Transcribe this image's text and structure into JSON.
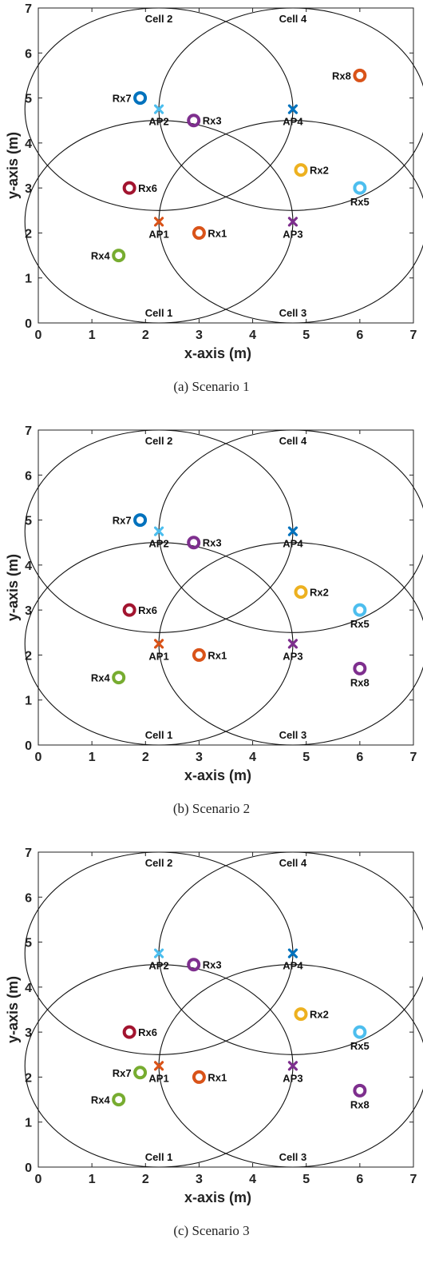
{
  "chart_data": [
    {
      "type": "scatter",
      "caption": "(a) Scenario 1",
      "xlabel": "x-axis (m)",
      "ylabel": "y-axis (m)",
      "xlim": [
        0,
        7
      ],
      "ylim": [
        0,
        7
      ],
      "xticks": [
        0,
        1,
        2,
        3,
        4,
        5,
        6,
        7
      ],
      "yticks": [
        0,
        1,
        2,
        3,
        4,
        5,
        6,
        7
      ],
      "grid": false,
      "cells": [
        {
          "name": "Cell 1",
          "center": [
            2.25,
            2.25
          ],
          "rx": 2.5,
          "ry": 2.25
        },
        {
          "name": "Cell 2",
          "center": [
            2.25,
            4.75
          ],
          "rx": 2.5,
          "ry": 2.25
        },
        {
          "name": "Cell 3",
          "center": [
            4.75,
            2.25
          ],
          "rx": 2.5,
          "ry": 2.25
        },
        {
          "name": "Cell 4",
          "center": [
            4.75,
            4.75
          ],
          "rx": 2.5,
          "ry": 2.25
        }
      ],
      "access_points": [
        {
          "name": "AP1",
          "x": 2.25,
          "y": 2.25,
          "color": "#D95319"
        },
        {
          "name": "AP2",
          "x": 2.25,
          "y": 4.75,
          "color": "#4DBEEE"
        },
        {
          "name": "AP3",
          "x": 4.75,
          "y": 2.25,
          "color": "#7E2F8E"
        },
        {
          "name": "AP4",
          "x": 4.75,
          "y": 4.75,
          "color": "#0072BD"
        }
      ],
      "receivers": [
        {
          "name": "Rx1",
          "x": 3.0,
          "y": 2.0,
          "color": "#D95319",
          "label_pos": "right"
        },
        {
          "name": "Rx2",
          "x": 4.9,
          "y": 3.4,
          "color": "#EDB120",
          "label_pos": "right"
        },
        {
          "name": "Rx3",
          "x": 2.9,
          "y": 4.5,
          "color": "#7E2F8E",
          "label_pos": "right"
        },
        {
          "name": "Rx4",
          "x": 1.5,
          "y": 1.5,
          "color": "#77AC30",
          "label_pos": "left"
        },
        {
          "name": "Rx5",
          "x": 6.0,
          "y": 3.0,
          "color": "#4DBEEE",
          "label_pos": "below"
        },
        {
          "name": "Rx6",
          "x": 1.7,
          "y": 3.0,
          "color": "#A2142F",
          "label_pos": "right"
        },
        {
          "name": "Rx7",
          "x": 1.9,
          "y": 5.0,
          "color": "#0072BD",
          "label_pos": "left"
        },
        {
          "name": "Rx8",
          "x": 6.0,
          "y": 5.5,
          "color": "#D95319",
          "label_pos": "left"
        }
      ]
    },
    {
      "type": "scatter",
      "caption": "(b) Scenario 2",
      "xlabel": "x-axis (m)",
      "ylabel": "y-axis (m)",
      "xlim": [
        0,
        7
      ],
      "ylim": [
        0,
        7
      ],
      "xticks": [
        0,
        1,
        2,
        3,
        4,
        5,
        6,
        7
      ],
      "yticks": [
        0,
        1,
        2,
        3,
        4,
        5,
        6,
        7
      ],
      "grid": false,
      "cells": [
        {
          "name": "Cell 1",
          "center": [
            2.25,
            2.25
          ],
          "rx": 2.5,
          "ry": 2.25
        },
        {
          "name": "Cell 2",
          "center": [
            2.25,
            4.75
          ],
          "rx": 2.5,
          "ry": 2.25
        },
        {
          "name": "Cell 3",
          "center": [
            4.75,
            2.25
          ],
          "rx": 2.5,
          "ry": 2.25
        },
        {
          "name": "Cell 4",
          "center": [
            4.75,
            4.75
          ],
          "rx": 2.5,
          "ry": 2.25
        }
      ],
      "access_points": [
        {
          "name": "AP1",
          "x": 2.25,
          "y": 2.25,
          "color": "#D95319"
        },
        {
          "name": "AP2",
          "x": 2.25,
          "y": 4.75,
          "color": "#4DBEEE"
        },
        {
          "name": "AP3",
          "x": 4.75,
          "y": 2.25,
          "color": "#7E2F8E"
        },
        {
          "name": "AP4",
          "x": 4.75,
          "y": 4.75,
          "color": "#0072BD"
        }
      ],
      "receivers": [
        {
          "name": "Rx1",
          "x": 3.0,
          "y": 2.0,
          "color": "#D95319",
          "label_pos": "right"
        },
        {
          "name": "Rx2",
          "x": 4.9,
          "y": 3.4,
          "color": "#EDB120",
          "label_pos": "right"
        },
        {
          "name": "Rx3",
          "x": 2.9,
          "y": 4.5,
          "color": "#7E2F8E",
          "label_pos": "right"
        },
        {
          "name": "Rx4",
          "x": 1.5,
          "y": 1.5,
          "color": "#77AC30",
          "label_pos": "left"
        },
        {
          "name": "Rx5",
          "x": 6.0,
          "y": 3.0,
          "color": "#4DBEEE",
          "label_pos": "below"
        },
        {
          "name": "Rx6",
          "x": 1.7,
          "y": 3.0,
          "color": "#A2142F",
          "label_pos": "right"
        },
        {
          "name": "Rx7",
          "x": 1.9,
          "y": 5.0,
          "color": "#0072BD",
          "label_pos": "left"
        },
        {
          "name": "Rx8",
          "x": 6.0,
          "y": 1.7,
          "color": "#7E2F8E",
          "label_pos": "below"
        }
      ]
    },
    {
      "type": "scatter",
      "caption": "(c) Scenario 3",
      "xlabel": "x-axis (m)",
      "ylabel": "y-axis (m)",
      "xlim": [
        0,
        7
      ],
      "ylim": [
        0,
        7
      ],
      "xticks": [
        0,
        1,
        2,
        3,
        4,
        5,
        6,
        7
      ],
      "yticks": [
        0,
        1,
        2,
        3,
        4,
        5,
        6,
        7
      ],
      "grid": false,
      "cells": [
        {
          "name": "Cell 1",
          "center": [
            2.25,
            2.25
          ],
          "rx": 2.5,
          "ry": 2.25
        },
        {
          "name": "Cell 2",
          "center": [
            2.25,
            4.75
          ],
          "rx": 2.5,
          "ry": 2.25
        },
        {
          "name": "Cell 3",
          "center": [
            4.75,
            2.25
          ],
          "rx": 2.5,
          "ry": 2.25
        },
        {
          "name": "Cell 4",
          "center": [
            4.75,
            4.75
          ],
          "rx": 2.5,
          "ry": 2.25
        }
      ],
      "access_points": [
        {
          "name": "AP1",
          "x": 2.25,
          "y": 2.25,
          "color": "#D95319"
        },
        {
          "name": "AP2",
          "x": 2.25,
          "y": 4.75,
          "color": "#4DBEEE"
        },
        {
          "name": "AP3",
          "x": 4.75,
          "y": 2.25,
          "color": "#7E2F8E"
        },
        {
          "name": "AP4",
          "x": 4.75,
          "y": 4.75,
          "color": "#0072BD"
        }
      ],
      "receivers": [
        {
          "name": "Rx1",
          "x": 3.0,
          "y": 2.0,
          "color": "#D95319",
          "label_pos": "right"
        },
        {
          "name": "Rx2",
          "x": 4.9,
          "y": 3.4,
          "color": "#EDB120",
          "label_pos": "right"
        },
        {
          "name": "Rx3",
          "x": 2.9,
          "y": 4.5,
          "color": "#7E2F8E",
          "label_pos": "right"
        },
        {
          "name": "Rx4",
          "x": 1.5,
          "y": 1.5,
          "color": "#77AC30",
          "label_pos": "left"
        },
        {
          "name": "Rx5",
          "x": 6.0,
          "y": 3.0,
          "color": "#4DBEEE",
          "label_pos": "below"
        },
        {
          "name": "Rx6",
          "x": 1.7,
          "y": 3.0,
          "color": "#A2142F",
          "label_pos": "right"
        },
        {
          "name": "Rx7",
          "x": 1.9,
          "y": 2.1,
          "color": "#77AC30",
          "label_pos": "left"
        },
        {
          "name": "Rx8",
          "x": 6.0,
          "y": 1.7,
          "color": "#7E2F8E",
          "label_pos": "below"
        }
      ]
    }
  ]
}
